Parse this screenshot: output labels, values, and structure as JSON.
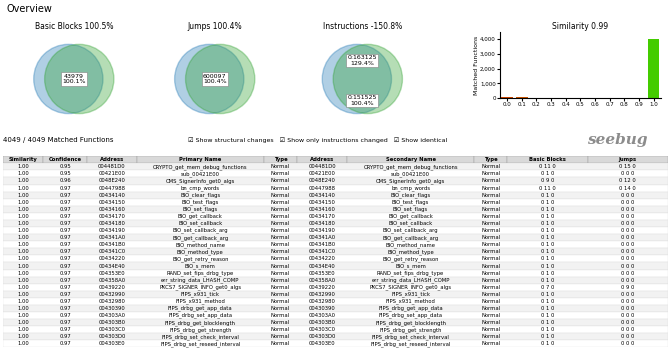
{
  "title": "Overview",
  "chart_data": [
    {
      "type": "venn",
      "title": "Basic Blocks 100.5%",
      "annotations": [
        "43979\n100.1%"
      ]
    },
    {
      "type": "venn",
      "title": "Jumps 100.4%",
      "annotations": [
        "600097\n100.4%"
      ]
    },
    {
      "type": "venn",
      "title": "Instructions -150.8%",
      "annotations": [
        "0:163125\n129.4%",
        "0:151525\n100.4%"
      ]
    },
    {
      "type": "bar",
      "title": "Similarity 0.99",
      "categories": [
        "0.0",
        "0.1",
        "0.2",
        "0.3",
        "0.4",
        "0.5",
        "0.6",
        "0.7",
        "0.8",
        "0.9",
        "1.0"
      ],
      "values": [
        80,
        60,
        50,
        40,
        35,
        30,
        25,
        20,
        15,
        10,
        4000
      ],
      "colors": [
        "#cc4400",
        "#cc5500",
        "#cc6600",
        "#cc7700",
        "#cc8800",
        "#cc9900",
        "#bbaa00",
        "#aabb00",
        "#88bb00",
        "#66bb00",
        "#44cc00"
      ],
      "ylabel": "Matched Functions",
      "ylim": [
        0,
        4500
      ],
      "yticks": [
        0,
        {
          "value": 1000,
          "label": "1,000"
        },
        {
          "value": 2000,
          "label": "2,000"
        },
        {
          "value": 3000,
          "label": "3,000"
        },
        {
          "value": 4000,
          "label": "4,000"
        }
      ]
    },
    {
      "type": "table",
      "columns": [
        "Similarity",
        "Confidence",
        "Address",
        "Primary Name",
        "Type",
        "Address",
        "Secondary Name",
        "Type",
        "Basic Blocks",
        "Jumps"
      ],
      "rows": [
        [
          "1.00",
          "0.95",
          "004481D0",
          "CRYPTO_get_mem_debug_functions",
          "Normal",
          "004481D0",
          "CRYPTO_get_mem_debug_functions",
          "Normal",
          "0 11 0",
          "0 15 0"
        ],
        [
          "1.00",
          "0.95",
          "00421E00",
          "sub_00421E00",
          "Normal",
          "00421E00",
          "sub_00421E00",
          "Normal",
          "0 1 0",
          "0 0 0"
        ],
        [
          "1.00",
          "0.96",
          "0048E240",
          "CMS_SignerInfo_get0_algs",
          "Normal",
          "0048E240",
          "CMS_SignerInfo_get0_algs",
          "Normal",
          "0 9 0",
          "0 12 0"
        ],
        [
          "1.00",
          "0.97",
          "00447988",
          "bn_cmp_words",
          "Normal",
          "00447988",
          "bn_cmp_words",
          "Normal",
          "0 11 0",
          "0 14 0"
        ],
        [
          "1.00",
          "0.97",
          "00434140",
          "BIO_clear_flags",
          "Normal",
          "00434140",
          "BIO_clear_flags",
          "Normal",
          "0 1 0",
          "0 0 0"
        ],
        [
          "1.00",
          "0.97",
          "00434150",
          "BIO_test_flags",
          "Normal",
          "00434150",
          "BIO_test_flags",
          "Normal",
          "0 1 0",
          "0 0 0"
        ],
        [
          "1.00",
          "0.97",
          "00434160",
          "BIO_set_flags",
          "Normal",
          "00434160",
          "BIO_set_flags",
          "Normal",
          "0 1 0",
          "0 0 0"
        ],
        [
          "1.00",
          "0.97",
          "00434170",
          "BIO_get_callback",
          "Normal",
          "00434170",
          "BIO_get_callback",
          "Normal",
          "0 1 0",
          "0 0 0"
        ],
        [
          "1.00",
          "0.97",
          "00434180",
          "BIO_set_callback",
          "Normal",
          "00434180",
          "BIO_set_callback",
          "Normal",
          "0 1 0",
          "0 0 0"
        ],
        [
          "1.00",
          "0.97",
          "00434190",
          "BIO_set_callback_arg",
          "Normal",
          "00434190",
          "BIO_set_callback_arg",
          "Normal",
          "0 1 0",
          "0 0 0"
        ],
        [
          "1.00",
          "0.97",
          "004341A0",
          "BIO_get_callback_arg",
          "Normal",
          "004341A0",
          "BIO_get_callback_arg",
          "Normal",
          "0 1 0",
          "0 0 0"
        ],
        [
          "1.00",
          "0.97",
          "004341B0",
          "BIO_method_name",
          "Normal",
          "004341B0",
          "BIO_method_name",
          "Normal",
          "0 1 0",
          "0 0 0"
        ],
        [
          "1.00",
          "0.97",
          "004341C0",
          "BIO_method_type",
          "Normal",
          "004341C0",
          "BIO_method_type",
          "Normal",
          "0 1 0",
          "0 0 0"
        ],
        [
          "1.00",
          "0.97",
          "00434220",
          "BIO_get_retry_reason",
          "Normal",
          "00434220",
          "BIO_get_retry_reason",
          "Normal",
          "0 1 0",
          "0 0 0"
        ],
        [
          "1.00",
          "0.97",
          "00434E40",
          "BIO_s_mem",
          "Normal",
          "00434E40",
          "BIO_s_mem",
          "Normal",
          "0 1 0",
          "0 0 0"
        ],
        [
          "1.00",
          "0.97",
          "004353E0",
          "RAND_set_fips_drbg_type",
          "Normal",
          "004353E0",
          "RAND_set_fips_drbg_type",
          "Normal",
          "0 1 0",
          "0 0 0"
        ],
        [
          "1.00",
          "0.97",
          "004358A0",
          "err_string_data_LHASH_COMP",
          "Normal",
          "004358A0",
          "err_string_data_LHASH_COMP",
          "Normal",
          "0 1 0",
          "0 0 0"
        ],
        [
          "1.00",
          "0.97",
          "00439220",
          "PKCS7_SIGNER_INFO_get0_algs",
          "Normal",
          "00439220",
          "PKCS7_SIGNER_INFO_get0_algs",
          "Normal",
          "0 7 0",
          "0 9 0"
        ],
        [
          "1.00",
          "0.97",
          "00432990",
          "FIPS_x931_tick",
          "Normal",
          "00432990",
          "FIPS_x931_tick",
          "Normal",
          "0 1 0",
          "0 0 0"
        ],
        [
          "1.00",
          "0.97",
          "00432980",
          "FIPS_x931_method",
          "Normal",
          "00432980",
          "FIPS_x931_method",
          "Normal",
          "0 1 0",
          "0 0 0"
        ],
        [
          "1.00",
          "0.97",
          "00430390",
          "FIPS_drbg_get_app_data",
          "Normal",
          "00430390",
          "FIPS_drbg_get_app_data",
          "Normal",
          "0 1 0",
          "0 0 0"
        ],
        [
          "1.00",
          "0.97",
          "004303A0",
          "FIPS_drbg_set_app_data",
          "Normal",
          "004303A0",
          "FIPS_drbg_set_app_data",
          "Normal",
          "0 1 0",
          "0 0 0"
        ],
        [
          "1.00",
          "0.97",
          "004303B0",
          "FIPS_drbg_get_blocklength",
          "Normal",
          "004303B0",
          "FIPS_drbg_get_blocklength",
          "Normal",
          "0 1 0",
          "0 0 0"
        ],
        [
          "1.00",
          "0.97",
          "004303C0",
          "FIPS_drbg_get_strength",
          "Normal",
          "004303C0",
          "FIPS_drbg_get_strength",
          "Normal",
          "0 1 0",
          "0 0 0"
        ],
        [
          "1.00",
          "0.97",
          "004303D0",
          "FIPS_drbg_set_check_interval",
          "Normal",
          "004303D0",
          "FIPS_drbg_set_check_interval",
          "Normal",
          "0 1 0",
          "0 0 0"
        ],
        [
          "1.00",
          "0.97",
          "004303E0",
          "FIPS_drbg_set_reseed_interval",
          "Normal",
          "004303E0",
          "FIPS_drbg_set_reseed_interval",
          "Normal",
          "0 1 0",
          "0 0 0"
        ]
      ],
      "annotations": [
        "4049 / 4049 Matched Functions",
        "☑ Show structural changes   ☑ Show only instructions changed   ☑ Show identical",
        "seebug"
      ]
    }
  ]
}
